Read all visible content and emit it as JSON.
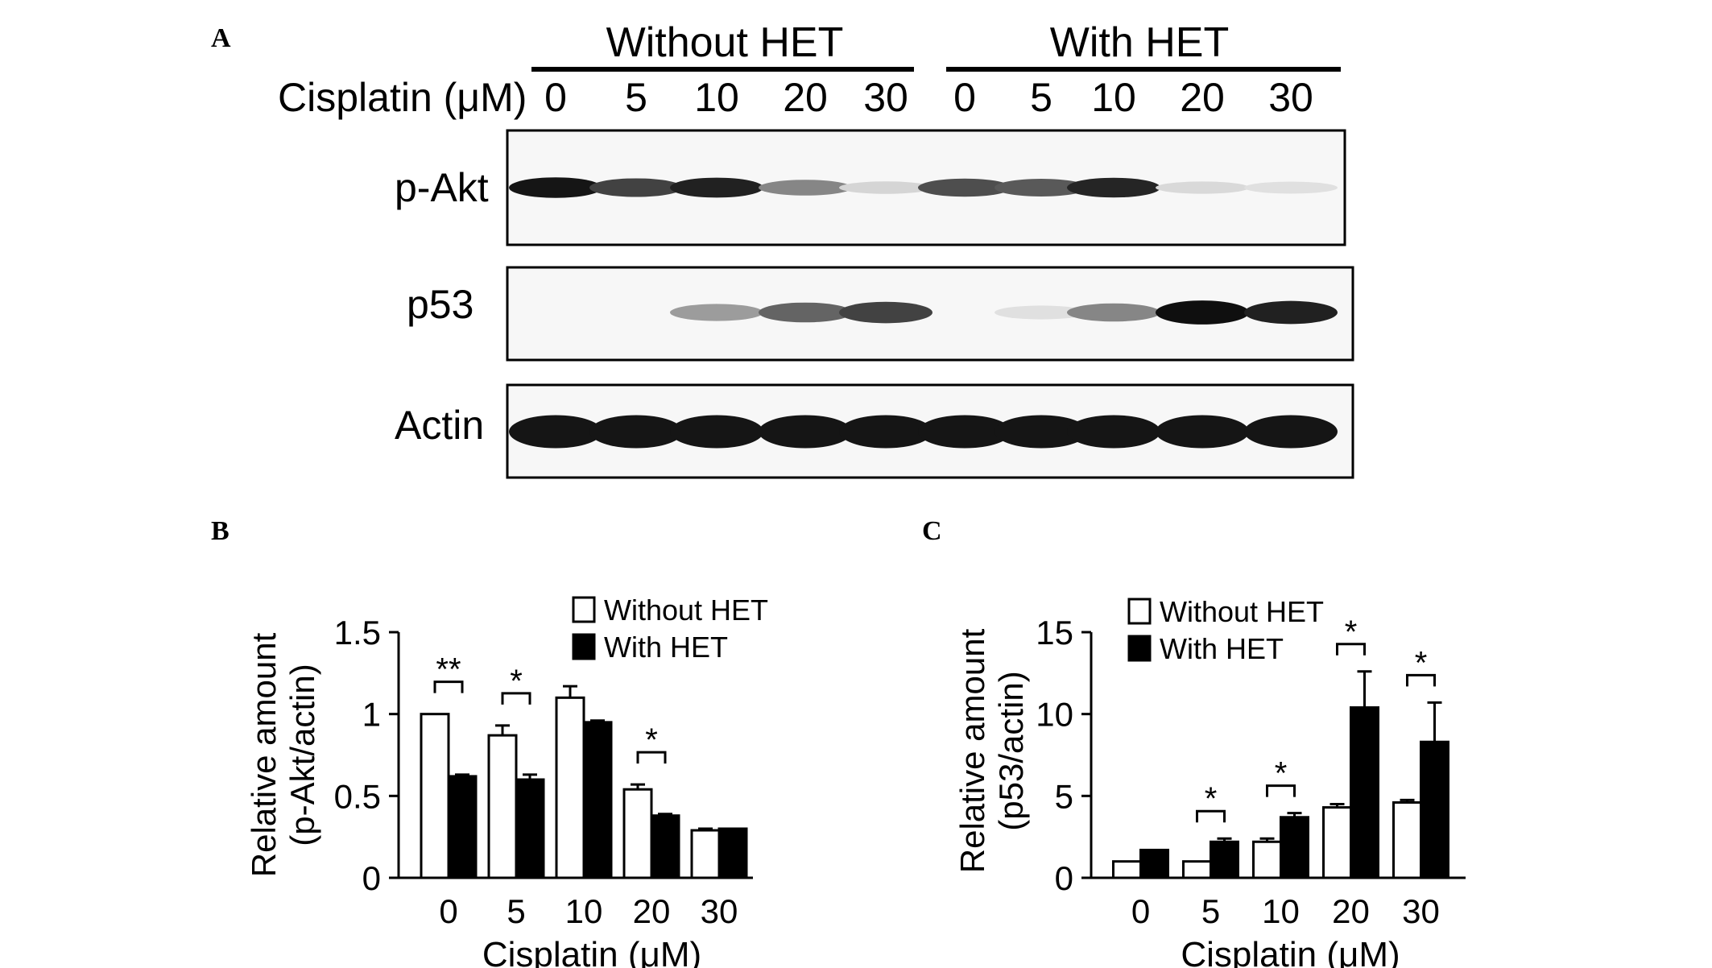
{
  "panel_letters": {
    "a": "A",
    "b": "B",
    "c": "C"
  },
  "blot": {
    "group_labels": [
      "Without HET",
      "With HET"
    ],
    "dose_label": "Cisplatin (μM)",
    "lanes": [
      "0",
      "5",
      "10",
      "20",
      "30",
      "0",
      "5",
      "10",
      "20",
      "30"
    ],
    "rows": [
      {
        "label": "p-Akt",
        "intensities": [
          0.95,
          0.75,
          0.9,
          0.45,
          0.1,
          0.7,
          0.65,
          0.88,
          0.08,
          0.05
        ]
      },
      {
        "label": "p53",
        "intensities": [
          0.0,
          0.0,
          0.35,
          0.6,
          0.75,
          0.0,
          0.05,
          0.45,
          0.98,
          0.9
        ]
      },
      {
        "label": "Actin",
        "intensities": [
          0.95,
          0.95,
          0.95,
          0.95,
          0.95,
          0.95,
          0.95,
          0.95,
          0.95,
          0.95
        ]
      }
    ]
  },
  "chart_data": [
    {
      "type": "bar",
      "panel": "B",
      "categories": [
        "0",
        "5",
        "10",
        "20",
        "30"
      ],
      "xlabel": "Cisplatin (μM)",
      "ylabel": [
        "Relative amount",
        "(p-Akt/actin)"
      ],
      "ylim": [
        0,
        1.5
      ],
      "yticks": [
        "0",
        "0.5",
        "1",
        "1.5"
      ],
      "ytick_values": [
        0,
        0.5,
        1,
        1.5
      ],
      "legend": "top-right",
      "series": [
        {
          "name": "Without HET",
          "values": [
            1.0,
            0.87,
            1.1,
            0.54,
            0.29
          ],
          "errors": [
            0.0,
            0.06,
            0.07,
            0.03,
            0.01
          ],
          "color": "#ffffff"
        },
        {
          "name": "With HET",
          "values": [
            0.62,
            0.6,
            0.95,
            0.38,
            0.3
          ],
          "errors": [
            0.01,
            0.03,
            0.01,
            0.01,
            0.0
          ],
          "color": "#000000"
        }
      ],
      "significance": [
        "**",
        "*",
        "",
        "*",
        ""
      ]
    },
    {
      "type": "bar",
      "panel": "C",
      "categories": [
        "0",
        "5",
        "10",
        "20",
        "30"
      ],
      "xlabel": "Cisplatin (μM)",
      "ylabel": [
        "Relative amount",
        "(p53/actin)"
      ],
      "ylim": [
        0,
        15
      ],
      "yticks": [
        "0",
        "5",
        "10",
        "15"
      ],
      "ytick_values": [
        0,
        5,
        10,
        15
      ],
      "legend": "top-left",
      "series": [
        {
          "name": "Without HET",
          "values": [
            1.0,
            1.0,
            2.2,
            4.3,
            4.6
          ],
          "errors": [
            0.0,
            0.0,
            0.2,
            0.2,
            0.15
          ],
          "color": "#ffffff"
        },
        {
          "name": "With HET",
          "values": [
            1.7,
            2.2,
            3.7,
            10.4,
            8.3
          ],
          "errors": [
            0.0,
            0.2,
            0.25,
            2.2,
            2.4
          ],
          "color": "#000000"
        }
      ],
      "significance": [
        "",
        "*",
        "*",
        "*",
        "*"
      ]
    }
  ]
}
